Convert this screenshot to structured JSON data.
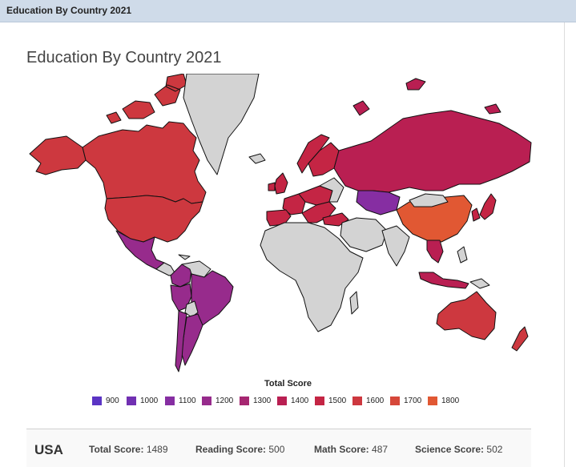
{
  "window": {
    "title": "Education By Country 2021"
  },
  "chart": {
    "title": "Education By Country 2021"
  },
  "legend": {
    "title": "Total Score",
    "items": [
      {
        "label": "900",
        "color": "#5b34c4"
      },
      {
        "label": "1000",
        "color": "#7130b2"
      },
      {
        "label": "1100",
        "color": "#862ea2"
      },
      {
        "label": "1200",
        "color": "#972b8c"
      },
      {
        "label": "1300",
        "color": "#a62771"
      },
      {
        "label": "1400",
        "color": "#b91f52"
      },
      {
        "label": "1500",
        "color": "#c42544"
      },
      {
        "label": "1600",
        "color": "#cd383f"
      },
      {
        "label": "1700",
        "color": "#d6483a"
      },
      {
        "label": "1800",
        "color": "#e15833"
      }
    ]
  },
  "map": {
    "no_data_color": "#d3d3d3"
  },
  "footer": {
    "country": "USA",
    "total": {
      "label": "Total Score:",
      "value": "1489"
    },
    "reading": {
      "label": "Reading Score:",
      "value": "500"
    },
    "math": {
      "label": "Math Score:",
      "value": "487"
    },
    "science": {
      "label": "Science Score:",
      "value": "502"
    }
  }
}
